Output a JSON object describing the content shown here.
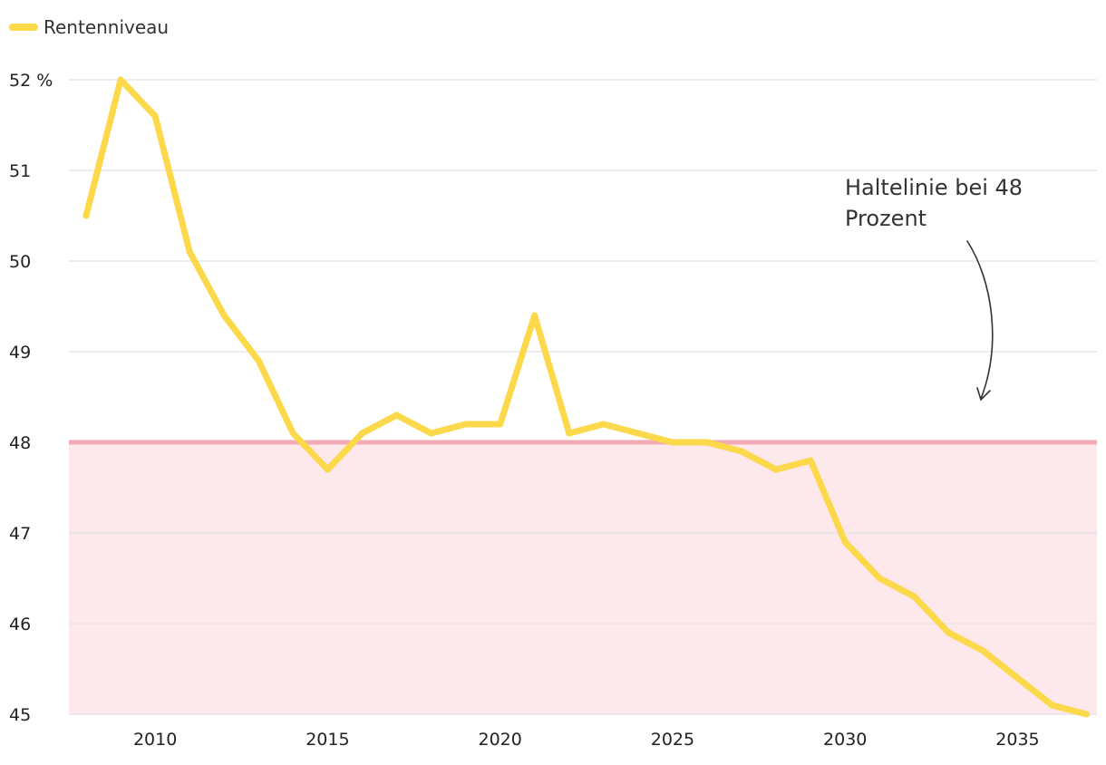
{
  "chart_data": {
    "type": "line",
    "title": "",
    "xlabel": "",
    "ylabel": "",
    "x": [
      2008,
      2009,
      2010,
      2011,
      2012,
      2013,
      2014,
      2015,
      2016,
      2017,
      2018,
      2019,
      2020,
      2021,
      2022,
      2023,
      2024,
      2025,
      2026,
      2027,
      2028,
      2029,
      2030,
      2031,
      2032,
      2033,
      2034,
      2035,
      2036,
      2037
    ],
    "series": [
      {
        "name": "Rentenniveau",
        "color": "#fcd84b",
        "values": [
          50.5,
          52.0,
          51.6,
          50.1,
          49.4,
          48.9,
          48.1,
          47.7,
          48.1,
          48.3,
          48.1,
          48.2,
          48.2,
          49.4,
          48.1,
          48.2,
          48.1,
          48.0,
          48.0,
          47.9,
          47.7,
          47.8,
          46.9,
          46.5,
          46.3,
          45.9,
          45.7,
          45.4,
          45.1,
          45.0
        ]
      }
    ],
    "xlim": [
      2007.5,
      2037.3
    ],
    "ylim": [
      45,
      52
    ],
    "y_ticks": [
      45,
      46,
      47,
      48,
      49,
      50,
      51,
      52
    ],
    "y_tick_labels": [
      "45",
      "46",
      "47",
      "48",
      "49",
      "50",
      "51",
      "52 %"
    ],
    "x_ticks": [
      2010,
      2015,
      2020,
      2025,
      2030,
      2035
    ],
    "x_tick_labels": [
      "2010",
      "2015",
      "2020",
      "2025",
      "2030",
      "2035"
    ],
    "grid": true,
    "legend": {
      "position": "top-left",
      "entries": [
        "Rentenniveau"
      ]
    },
    "reference_line": {
      "value": 48,
      "color": "#f2aab4",
      "fill_below_color": "#fde8eb"
    },
    "annotation": {
      "lines": [
        "Haltelinie bei 48",
        "Prozent"
      ],
      "points_to": 48
    }
  }
}
